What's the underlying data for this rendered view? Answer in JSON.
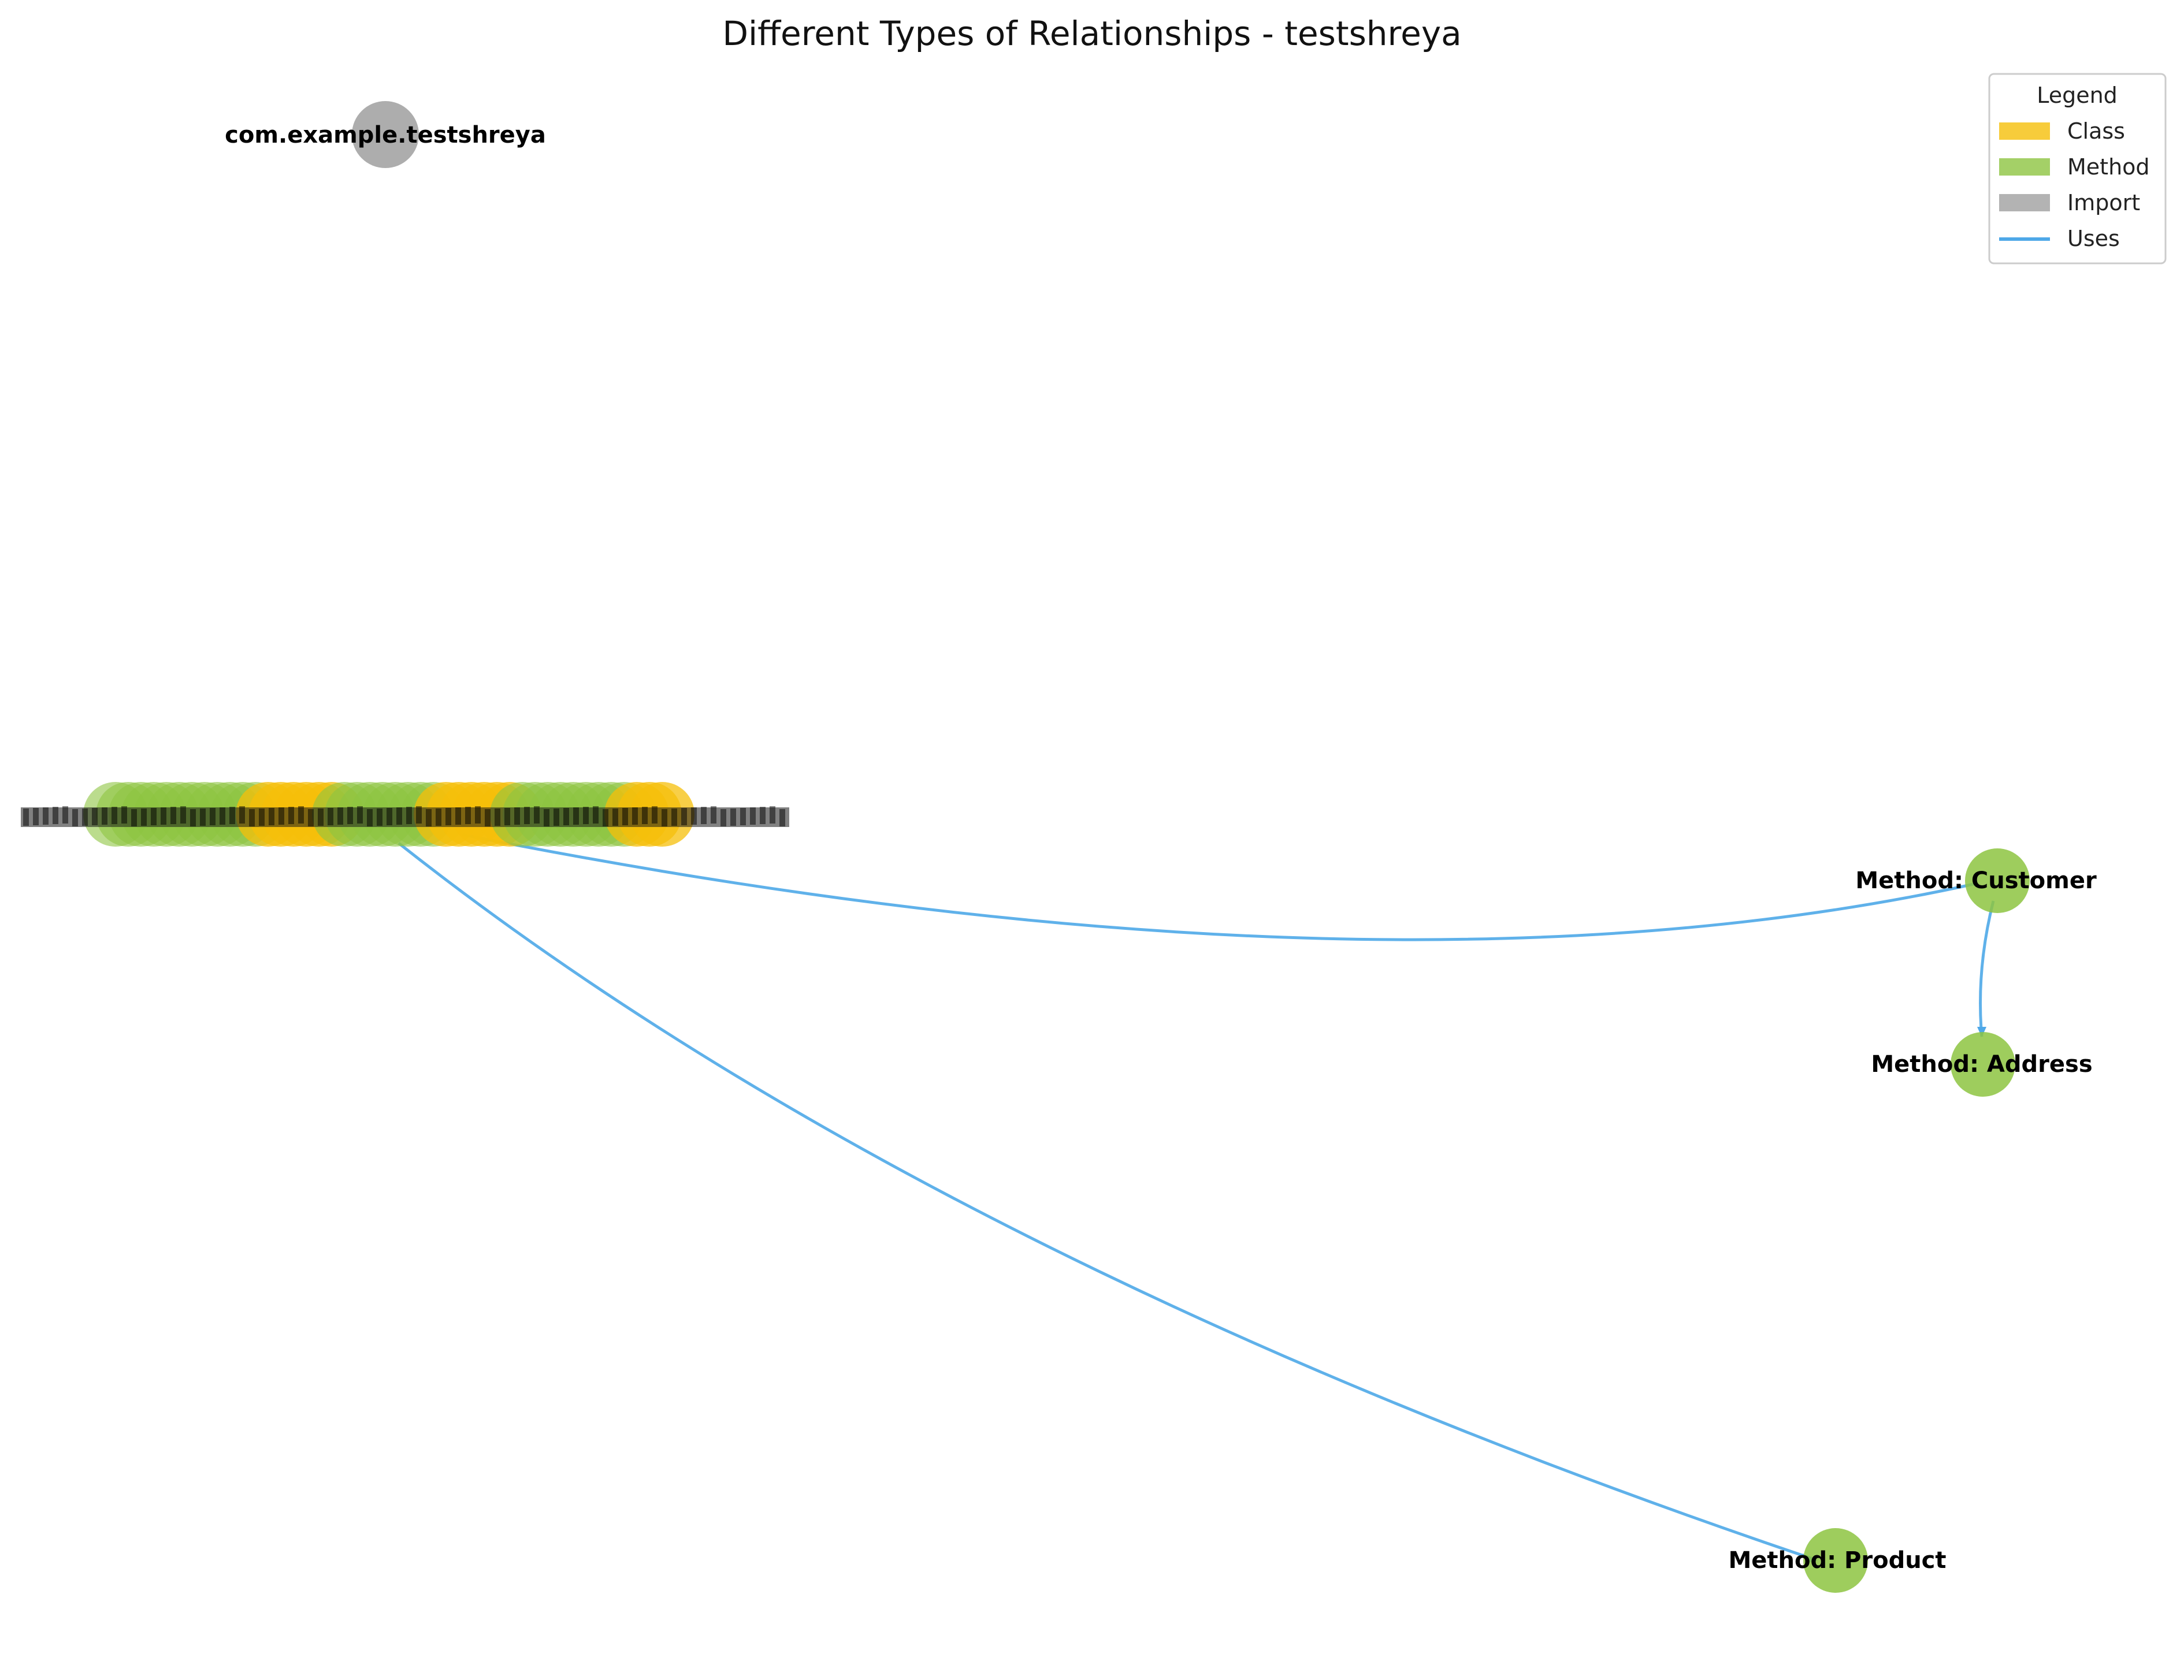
{
  "title": "Different Types of Relationships - testshreya",
  "colors": {
    "class": "#F5BF0A",
    "method": "#8DC441",
    "import": "#999999",
    "uses": "#4EA8E8"
  },
  "legend": {
    "title": "Legend",
    "items": [
      {
        "label": "Class",
        "kind": "patch",
        "color_key": "class"
      },
      {
        "label": "Method",
        "kind": "patch",
        "color_key": "method"
      },
      {
        "label": "Import",
        "kind": "patch",
        "color_key": "import"
      },
      {
        "label": "Uses",
        "kind": "line",
        "color_key": "uses"
      }
    ]
  },
  "nodes": {
    "import_node": {
      "label": "com.example.testshreya",
      "type": "import"
    },
    "customer": {
      "label": "Method: Customer",
      "type": "method"
    },
    "address": {
      "label": "Method: Address",
      "type": "method"
    },
    "product": {
      "label": "Method: Product",
      "type": "method"
    }
  },
  "edges": [
    {
      "from": "cluster",
      "to": "customer",
      "type": "uses"
    },
    {
      "from": "customer",
      "to": "address",
      "type": "uses"
    },
    {
      "from": "cluster",
      "to": "product",
      "type": "uses"
    }
  ]
}
